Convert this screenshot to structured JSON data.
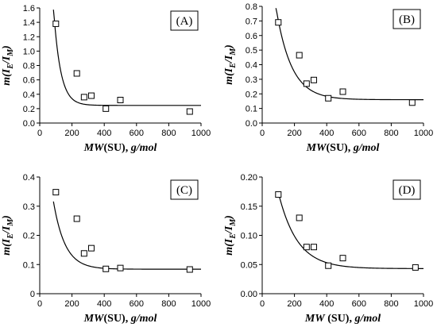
{
  "chart_data": [
    {
      "type": "scatter",
      "panel_label": "(A)",
      "xlabel": {
        "main": "MW",
        "unit_mid": "(SU),",
        "unit_end": "g/mol"
      },
      "ylabel": {
        "prefix": "m(I",
        "sub1": "E",
        "mid": "/I",
        "sub2": "M",
        "suffix": ")"
      },
      "xlim": [
        0,
        1000
      ],
      "ylim": [
        0,
        1.6
      ],
      "xticks": [
        "0",
        "200",
        "400",
        "600",
        "800",
        "1000"
      ],
      "yticks": [
        "0.0",
        "0.2",
        "0.4",
        "0.6",
        "0.8",
        "1.0",
        "1.2",
        "1.4",
        "1.6"
      ],
      "ytick_values": [
        0,
        0.2,
        0.4,
        0.6,
        0.8,
        1.0,
        1.2,
        1.4,
        1.6
      ],
      "points": [
        {
          "x": 100,
          "y": 1.38
        },
        {
          "x": 230,
          "y": 0.69
        },
        {
          "x": 275,
          "y": 0.36
        },
        {
          "x": 320,
          "y": 0.38
        },
        {
          "x": 410,
          "y": 0.2
        },
        {
          "x": 500,
          "y": 0.32
        },
        {
          "x": 930,
          "y": 0.16
        }
      ],
      "fit": {
        "x_start": 85,
        "x_end": 1000,
        "asymptote": 0.245,
        "amplitude": 9.8,
        "decay": 0.0232
      }
    },
    {
      "type": "scatter",
      "panel_label": "(B)",
      "xlabel": {
        "main": "MW",
        "unit_mid": "(SU),",
        "unit_end": "g/mol"
      },
      "ylabel": {
        "prefix": "m(I",
        "sub1": "E",
        "mid": "/I",
        "sub2": "M",
        "suffix": ")"
      },
      "xlim": [
        0,
        1000
      ],
      "ylim": [
        0,
        0.8
      ],
      "xticks": [
        "0",
        "200",
        "400",
        "600",
        "800",
        "1000"
      ],
      "yticks": [
        "0.0",
        "0.1",
        "0.2",
        "0.3",
        "0.4",
        "0.5",
        "0.6",
        "0.7",
        "0.8"
      ],
      "ytick_values": [
        0,
        0.1,
        0.2,
        0.3,
        0.4,
        0.5,
        0.6,
        0.7,
        0.8
      ],
      "points": [
        {
          "x": 100,
          "y": 0.69
        },
        {
          "x": 230,
          "y": 0.465
        },
        {
          "x": 275,
          "y": 0.27
        },
        {
          "x": 320,
          "y": 0.295
        },
        {
          "x": 410,
          "y": 0.17
        },
        {
          "x": 500,
          "y": 0.215
        },
        {
          "x": 930,
          "y": 0.14
        }
      ],
      "fit": {
        "x_start": 85,
        "x_end": 1000,
        "asymptote": 0.16,
        "amplitude": 1.55,
        "decay": 0.0105
      }
    },
    {
      "type": "scatter",
      "panel_label": "(C)",
      "xlabel": {
        "main": "MW",
        "unit_mid": "(SU),",
        "unit_end": "g/mol"
      },
      "ylabel": {
        "prefix": "m(I",
        "sub1": "E",
        "mid": "/I",
        "sub2": "M",
        "suffix": ")"
      },
      "xlim": [
        0,
        1000
      ],
      "ylim": [
        0,
        0.4
      ],
      "xticks": [
        "0",
        "200",
        "400",
        "600",
        "800",
        "1000"
      ],
      "yticks": [
        "0",
        "0.1",
        "0.2",
        "0.3",
        "0.4"
      ],
      "ytick_values": [
        0,
        0.1,
        0.2,
        0.3,
        0.4
      ],
      "points": [
        {
          "x": 100,
          "y": 0.348
        },
        {
          "x": 230,
          "y": 0.257
        },
        {
          "x": 275,
          "y": 0.138
        },
        {
          "x": 320,
          "y": 0.156
        },
        {
          "x": 410,
          "y": 0.085
        },
        {
          "x": 500,
          "y": 0.088
        },
        {
          "x": 930,
          "y": 0.083
        }
      ],
      "fit": {
        "x_start": 85,
        "x_end": 1000,
        "asymptote": 0.084,
        "amplitude": 0.75,
        "decay": 0.0138
      }
    },
    {
      "type": "scatter",
      "panel_label": "(D)",
      "xlabel": {
        "main": "MW",
        "unit_mid": "(SU),",
        "unit_end": "g/mol"
      },
      "ylabel": {
        "prefix": "m(I",
        "sub1": "E",
        "mid": "/I",
        "sub2": "M",
        "suffix": ")"
      },
      "xlim": [
        0,
        1000
      ],
      "ylim": [
        0,
        0.2
      ],
      "xticks": [
        "0",
        "200",
        "400",
        "600",
        "800",
        "1000"
      ],
      "yticks": [
        "0.00",
        "0.05",
        "0.10",
        "0.15",
        "0.20"
      ],
      "ytick_values": [
        0,
        0.05,
        0.1,
        0.15,
        0.2
      ],
      "points": [
        {
          "x": 100,
          "y": 0.17
        },
        {
          "x": 230,
          "y": 0.13
        },
        {
          "x": 275,
          "y": 0.08
        },
        {
          "x": 320,
          "y": 0.08
        },
        {
          "x": 410,
          "y": 0.048
        },
        {
          "x": 500,
          "y": 0.061
        },
        {
          "x": 950,
          "y": 0.045
        }
      ],
      "fit": {
        "x_start": 100,
        "x_end": 1000,
        "asymptote": 0.043,
        "amplitude": 0.305,
        "decay": 0.0085
      }
    }
  ]
}
